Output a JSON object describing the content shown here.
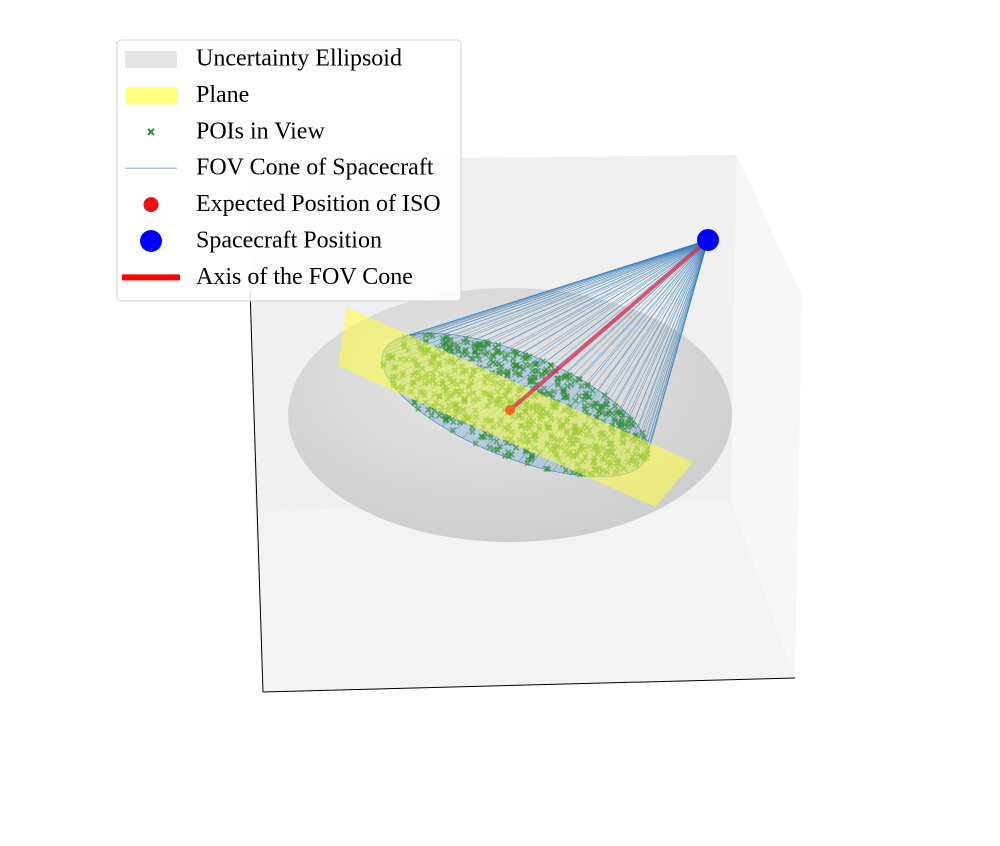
{
  "chart_data": {
    "type": "scatter3d",
    "legend": "upper left",
    "series": [
      {
        "name": "Uncertainty Ellipsoid",
        "color": "#e5e5e5",
        "marker": "patch"
      },
      {
        "name": "Plane",
        "color": "#ffff80",
        "marker": "patch"
      },
      {
        "name": "POIs in View",
        "color": "#2e8b2e",
        "marker": "x"
      },
      {
        "name": "FOV Cone of Spacecraft",
        "color": "#a9c8dc",
        "marker": "line"
      },
      {
        "name": "Expected Position of ISO",
        "color": "#ee1111",
        "marker": "circle"
      },
      {
        "name": "Spacecraft Position",
        "color": "#0000ff",
        "marker": "bigcircle"
      },
      {
        "name": "Axis of the FOV Cone",
        "color": "#ff0000",
        "marker": "thickline"
      }
    ]
  }
}
